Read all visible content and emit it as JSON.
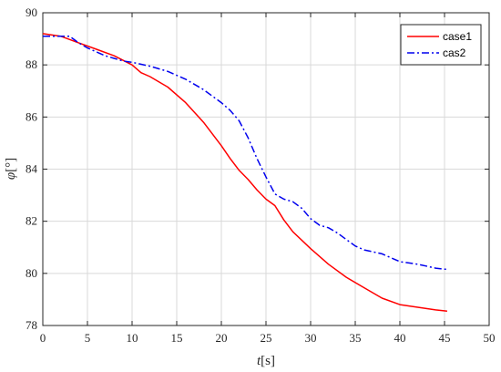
{
  "chart_data": {
    "type": "line",
    "title": "",
    "xlabel_var": "t",
    "xlabel_unit": "[s]",
    "ylabel_var": "φ",
    "ylabel_unit": "[°]",
    "xlim": [
      0,
      50
    ],
    "ylim": [
      78,
      90
    ],
    "xticks": [
      0,
      5,
      10,
      15,
      20,
      25,
      30,
      35,
      40,
      45,
      50
    ],
    "yticks": [
      78,
      80,
      82,
      84,
      86,
      88,
      90
    ],
    "grid": true,
    "legend_position": "top-right",
    "series": [
      {
        "name": "case1",
        "color": "#ff0000",
        "style": "solid",
        "x": [
          0,
          2,
          4,
          6,
          8,
          10,
          11,
          12,
          14,
          16,
          18,
          20,
          21,
          22,
          23,
          24,
          25,
          26,
          27,
          28,
          30,
          32,
          34,
          36,
          38,
          40,
          42,
          44,
          45.3
        ],
        "y": [
          89.2,
          89.1,
          88.85,
          88.6,
          88.35,
          88.0,
          87.7,
          87.55,
          87.15,
          86.55,
          85.8,
          84.9,
          84.4,
          83.95,
          83.6,
          83.2,
          82.85,
          82.6,
          82.05,
          81.6,
          80.95,
          80.35,
          79.85,
          79.45,
          79.05,
          78.8,
          78.7,
          78.6,
          78.55
        ]
      },
      {
        "name": "cas2",
        "color": "#0000ee",
        "style": "dashdot",
        "x": [
          0,
          3,
          4,
          5,
          7,
          9,
          10,
          12,
          14,
          16,
          18,
          20,
          21,
          22,
          23,
          24,
          25,
          26,
          27,
          28,
          29,
          30,
          31,
          32,
          33,
          34,
          35,
          36,
          38,
          40,
          42,
          44,
          45.3
        ],
        "y": [
          89.1,
          89.1,
          88.85,
          88.65,
          88.35,
          88.15,
          88.1,
          87.95,
          87.75,
          87.45,
          87.05,
          86.55,
          86.25,
          85.85,
          85.2,
          84.4,
          83.7,
          83.05,
          82.85,
          82.75,
          82.5,
          82.1,
          81.85,
          81.75,
          81.55,
          81.3,
          81.05,
          80.9,
          80.75,
          80.45,
          80.35,
          80.2,
          80.15
        ]
      }
    ]
  }
}
